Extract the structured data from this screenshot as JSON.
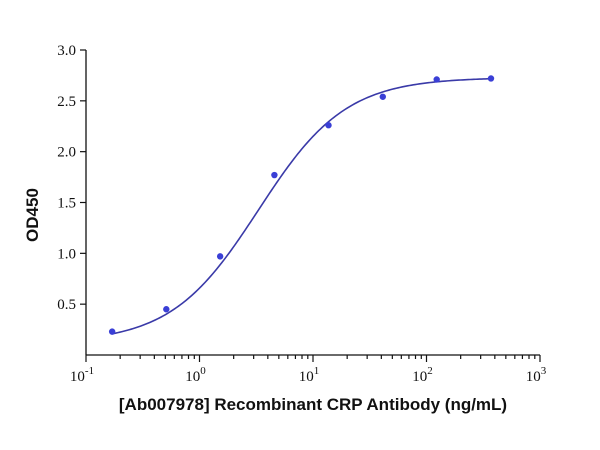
{
  "chart_data": {
    "type": "scatter",
    "title": "",
    "xlabel": "[Ab007978] Recombinant CRP Antibody (ng/mL)",
    "ylabel": "OD450",
    "x_scale": "log",
    "xlim": [
      0.1,
      1000
    ],
    "ylim": [
      0.0,
      3.0
    ],
    "x_ticks": [
      {
        "base": "10",
        "exp": "-1"
      },
      {
        "base": "10",
        "exp": "0"
      },
      {
        "base": "10",
        "exp": "1"
      },
      {
        "base": "10",
        "exp": "2"
      },
      {
        "base": "10",
        "exp": "3"
      }
    ],
    "y_ticks": [
      "0.5",
      "1.0",
      "1.5",
      "2.0",
      "2.5",
      "3.0"
    ],
    "grid": false,
    "legend": "none",
    "series": [
      {
        "x": [
          0.17,
          0.51,
          1.52,
          4.57,
          13.7,
          41.2,
          123,
          370
        ],
        "y": [
          0.23,
          0.45,
          0.97,
          1.77,
          2.26,
          2.54,
          2.71,
          2.72
        ]
      }
    ],
    "fit": {
      "bottom": 0.12,
      "top": 2.73,
      "ec50": 3.3,
      "hill": 1.13
    },
    "colors": {
      "points": "#3a3fd6",
      "curve": "#3a3aa8",
      "axes": "#111111"
    }
  }
}
